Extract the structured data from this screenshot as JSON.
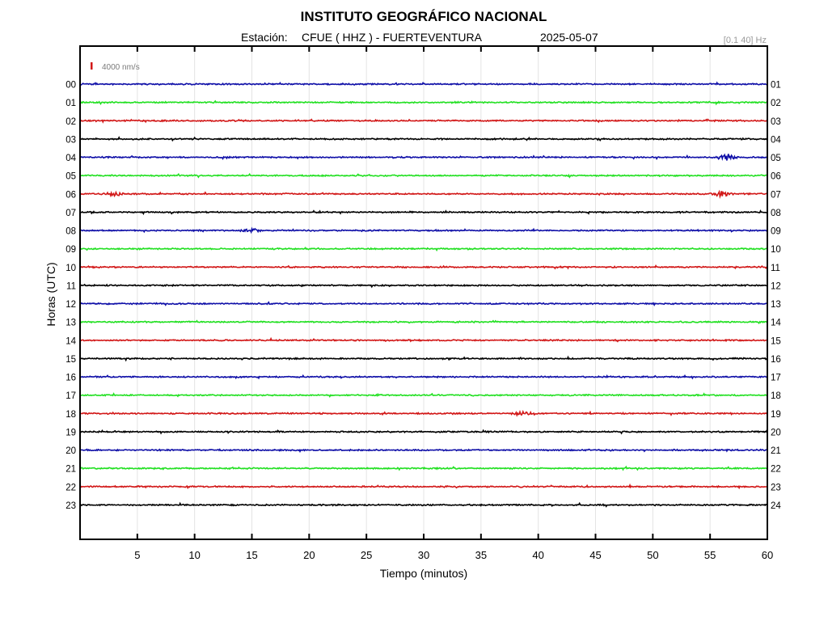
{
  "chart_data": {
    "type": "line",
    "title": "INSTITUTO GEOGRÁFICO NACIONAL",
    "station_label": "Estación:",
    "station": "CFUE ( HHZ ) - FUERTEVENTURA",
    "date": "2025-05-07",
    "filter": "[0.1 40] Hz",
    "scale_label": "4000 nm/s",
    "xlabel": "Tiempo (minutos)",
    "ylabel": "Horas (UTC)",
    "xlim": [
      0,
      60
    ],
    "x_ticks": [
      "5",
      "10",
      "15",
      "20",
      "25",
      "30",
      "35",
      "40",
      "45",
      "50",
      "55",
      "60"
    ],
    "left_labels": [
      "00",
      "01",
      "02",
      "03",
      "04",
      "05",
      "06",
      "07",
      "08",
      "09",
      "10",
      "11",
      "12",
      "13",
      "14",
      "15",
      "16",
      "17",
      "18",
      "19",
      "20",
      "21",
      "22",
      "23"
    ],
    "right_labels": [
      "01",
      "02",
      "03",
      "04",
      "05",
      "06",
      "07",
      "08",
      "09",
      "10",
      "11",
      "12",
      "13",
      "14",
      "15",
      "16",
      "17",
      "18",
      "19",
      "20",
      "21",
      "22",
      "23",
      "24"
    ],
    "trace_colors": [
      "#1010a8",
      "#22e022",
      "#d21818",
      "#000000"
    ],
    "grid": "vertical",
    "events": [
      {
        "hour": 4,
        "minute": 56.5,
        "amplitude": 4
      },
      {
        "hour": 6,
        "minute": 56.0,
        "amplitude": 3
      },
      {
        "hour": 6,
        "minute": 3.0,
        "amplitude": 2
      },
      {
        "hour": 8,
        "minute": 15.0,
        "amplitude": 2
      },
      {
        "hour": 18,
        "minute": 38.6,
        "amplitude": 2
      }
    ]
  }
}
